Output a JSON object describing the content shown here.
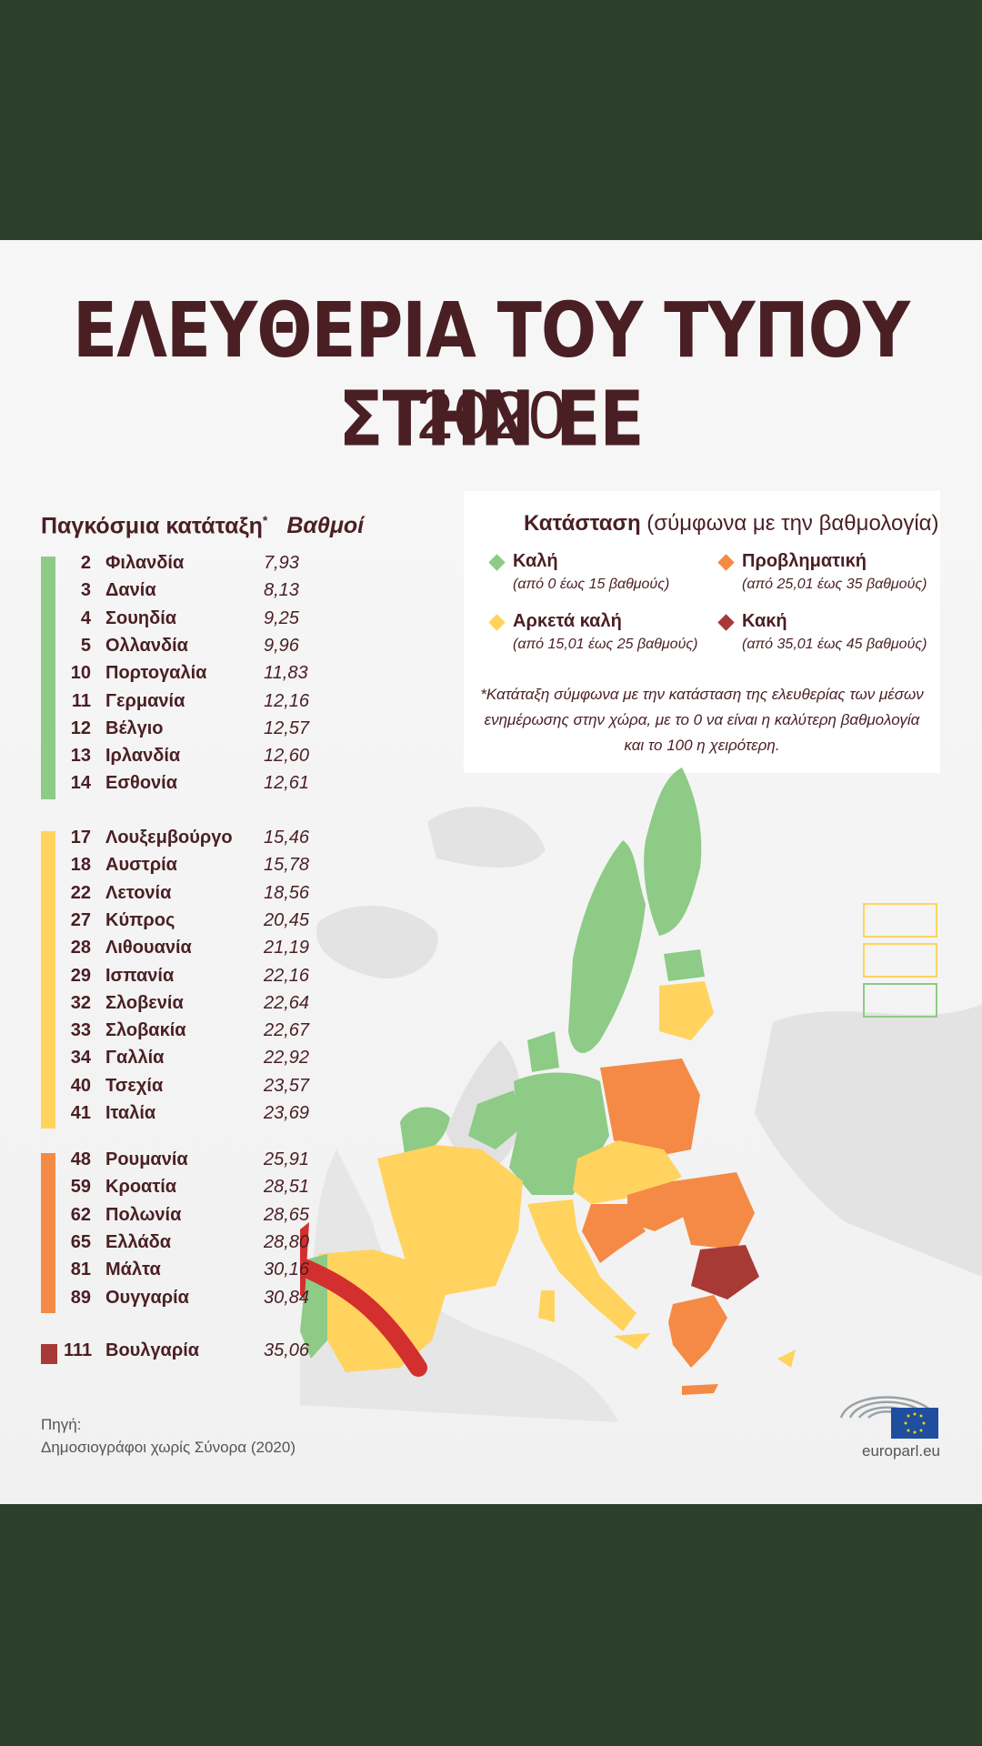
{
  "title": "ΕΛΕΥΘΕΡΙΑ ΤΟΥ ΤΥΠΟΥ ΣΤΗΝ ΕΕ",
  "year": "2020",
  "ranking_header": {
    "label": "Παγκόσμια κατάταξη",
    "star": "*",
    "points": "Βαθμοί"
  },
  "colors": {
    "good": "#8dcb86",
    "fair": "#ffd35e",
    "problem": "#f48a45",
    "bad": "#a83a35",
    "text": "#4a1f24",
    "frame": "#2c3f2b"
  },
  "groups": [
    {
      "status": "good",
      "rows": [
        {
          "rank": "2",
          "name": "Φιλανδία",
          "score": "7,93"
        },
        {
          "rank": "3",
          "name": "Δανία",
          "score": "8,13"
        },
        {
          "rank": "4",
          "name": "Σουηδία",
          "score": "9,25"
        },
        {
          "rank": "5",
          "name": "Ολλανδία",
          "score": "9,96"
        },
        {
          "rank": "10",
          "name": "Πορτογαλία",
          "score": "11,83"
        },
        {
          "rank": "11",
          "name": "Γερμανία",
          "score": "12,16"
        },
        {
          "rank": "12",
          "name": "Βέλγιο",
          "score": "12,57"
        },
        {
          "rank": "13",
          "name": "Ιρλανδία",
          "score": "12,60"
        },
        {
          "rank": "14",
          "name": "Εσθονία",
          "score": "12,61"
        }
      ]
    },
    {
      "status": "fair",
      "rows": [
        {
          "rank": "17",
          "name": "Λουξεμβούργο",
          "score": "15,46"
        },
        {
          "rank": "18",
          "name": "Αυστρία",
          "score": "15,78"
        },
        {
          "rank": "22",
          "name": "Λετονία",
          "score": "18,56"
        },
        {
          "rank": "27",
          "name": "Κύπρος",
          "score": "20,45"
        },
        {
          "rank": "28",
          "name": "Λιθουανία",
          "score": "21,19"
        },
        {
          "rank": "29",
          "name": "Ισπανία",
          "score": "22,16"
        },
        {
          "rank": "32",
          "name": "Σλοβενία",
          "score": "22,64"
        },
        {
          "rank": "33",
          "name": "Σλοβακία",
          "score": "22,67"
        },
        {
          "rank": "34",
          "name": "Γαλλία",
          "score": "22,92"
        },
        {
          "rank": "40",
          "name": "Τσεχία",
          "score": "23,57"
        },
        {
          "rank": "41",
          "name": "Ιταλία",
          "score": "23,69"
        }
      ]
    },
    {
      "status": "problem",
      "rows": [
        {
          "rank": "48",
          "name": "Ρουμανία",
          "score": "25,91"
        },
        {
          "rank": "59",
          "name": "Κροατία",
          "score": "28,51"
        },
        {
          "rank": "62",
          "name": "Πολωνία",
          "score": "28,65"
        },
        {
          "rank": "65",
          "name": "Ελλάδα",
          "score": "28,80"
        },
        {
          "rank": "81",
          "name": "Μάλτα",
          "score": "30,16"
        },
        {
          "rank": "89",
          "name": "Ουγγαρία",
          "score": "30,84"
        }
      ]
    },
    {
      "status": "bad",
      "rows": [
        {
          "rank": "111",
          "name": "Βουλγαρία",
          "score": "35,06"
        }
      ]
    }
  ],
  "legend": {
    "heading": "Κατάσταση",
    "heading_note": "(σύμφωνα με την βαθμολογία)",
    "items": [
      {
        "status": "good",
        "name": "Καλή",
        "range": "(από 0 έως 15 βαθμούς)"
      },
      {
        "status": "problem",
        "name": "Προβληματική",
        "range": "(από 25,01 έως 35 βαθμούς)"
      },
      {
        "status": "fair",
        "name": "Αρκετά καλή",
        "range": "(από 15,01 έως 25 βαθμούς)"
      },
      {
        "status": "bad",
        "name": "Κακή",
        "range": "(από 35,01 έως 45 βαθμούς)"
      }
    ],
    "note": "*Κατάταξη σύμφωνα με την κατάσταση της ελευθερίας των μέσων ενημέρωσης στην χώρα, με το 0 να είναι η καλύτερη βαθμολογία και το 100 η χειρότερη."
  },
  "source": {
    "label": "Πηγή:",
    "value": "Δημοσιογράφοι χωρίς Σύνορα (2020)"
  },
  "site": "europarl.eu",
  "map_icons": [
    "eu-map-icon",
    "arrow-annotation-icon",
    "european-parliament-logo-icon",
    "eu-flag-icon"
  ]
}
